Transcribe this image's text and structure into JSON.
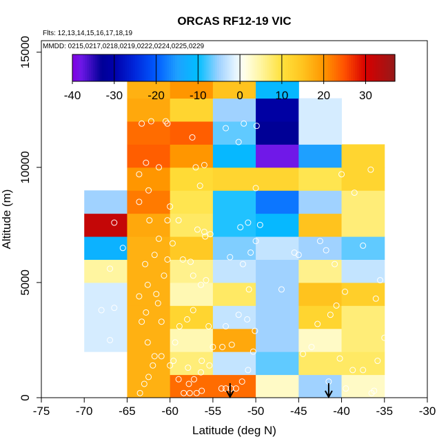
{
  "chart_data": {
    "type": "heatmap",
    "title": "ORCAS RF12-19 VIC",
    "flights_note": "Flts: 12,13,14,15,16,17,18,19",
    "dates_note": "MMDD: 0215,0217,0218,0219,0222,0224,0225,0229",
    "xlabel": "Latitude (deg N)",
    "ylabel": "Altitude (m)",
    "xlim": [
      -75,
      -30
    ],
    "ylim": [
      0,
      15500
    ],
    "x_ticks": [
      -75,
      -70,
      -65,
      -60,
      -55,
      -50,
      -45,
      -40,
      -35,
      -30
    ],
    "y_ticks": [
      0,
      5000,
      10000,
      15000
    ],
    "colorbar": {
      "range": [
        -40,
        37
      ],
      "ticks": [
        -40,
        -30,
        -20,
        -10,
        0,
        10,
        20,
        30
      ]
    },
    "cell_lat_edges": [
      -70,
      -65,
      -60,
      -55,
      -50,
      -45,
      -40,
      -35
    ],
    "cell_alt_step": 1000,
    "grid": [
      [
        null,
        17,
        23,
        23,
        3,
        -5,
        3
      ],
      [
        null,
        17,
        7,
        -3,
        -7,
        8,
        8
      ],
      [
        -2,
        17,
        4,
        18,
        -5,
        3,
        7
      ],
      [
        -2,
        17,
        12,
        -3,
        -5,
        12,
        7
      ],
      [
        -2,
        17,
        4,
        8,
        -5,
        15,
        13
      ],
      [
        5,
        17,
        6,
        -3,
        -5,
        6,
        -3
      ],
      [
        -12,
        17,
        14,
        -6,
        -3,
        -5,
        -7
      ],
      [
        32,
        18,
        8,
        -9,
        -11,
        15,
        7
      ],
      [
        -5,
        22,
        9,
        -9,
        -18,
        -5,
        7
      ],
      [
        null,
        20,
        11,
        12,
        12,
        9,
        12
      ],
      [
        null,
        24,
        20,
        -11,
        -38,
        -15,
        12
      ],
      [
        null,
        23,
        24,
        -7,
        -33,
        -2,
        null
      ],
      [
        null,
        18,
        12,
        -5,
        -31,
        -2,
        null
      ],
      [
        null,
        17,
        20,
        15,
        -11,
        null,
        null
      ]
    ],
    "points": [
      [
        -69,
        250
      ],
      [
        -68.5,
        900
      ],
      [
        -68,
        1300
      ],
      [
        -67.5,
        1500
      ],
      [
        -66.5,
        300
      ],
      [
        -66,
        1100
      ],
      [
        -67,
        2500
      ],
      [
        -68,
        3800
      ],
      [
        -66.5,
        3900
      ],
      [
        -67,
        5600
      ],
      [
        -65.5,
        6500
      ],
      [
        -66.5,
        7600
      ],
      [
        -63.5,
        200
      ],
      [
        -63,
        600
      ],
      [
        -62.5,
        900
      ],
      [
        -62,
        1400
      ],
      [
        -61.8,
        1800
      ],
      [
        -62.6,
        2400
      ],
      [
        -63.3,
        3300
      ],
      [
        -62.8,
        3700
      ],
      [
        -63.6,
        4400
      ],
      [
        -61.4,
        4100
      ],
      [
        -62.6,
        4900
      ],
      [
        -62.9,
        5800
      ],
      [
        -61.8,
        6200
      ],
      [
        -61.3,
        6900
      ],
      [
        -62.4,
        7700
      ],
      [
        -63.6,
        8500
      ],
      [
        -62.5,
        9000
      ],
      [
        -63.6,
        9700
      ],
      [
        -62.8,
        10200
      ],
      [
        -63.3,
        11900
      ],
      [
        -62.2,
        12000
      ],
      [
        -61.3,
        10000
      ],
      [
        -60.5,
        12000
      ],
      [
        -60.3,
        11900
      ],
      [
        -61.0,
        1800
      ],
      [
        -61.0,
        3300
      ],
      [
        -61.6,
        4500
      ],
      [
        -60.7,
        5300
      ],
      [
        -60.3,
        6000
      ],
      [
        -59.7,
        6700
      ],
      [
        -60.3,
        7700
      ],
      [
        -60.0,
        8300
      ],
      [
        -59.0,
        7700
      ],
      [
        -58.5,
        6000
      ],
      [
        -57.6,
        5900
      ],
      [
        -57.3,
        5300
      ],
      [
        -56.4,
        4900
      ],
      [
        -55.8,
        5100
      ],
      [
        -57.8,
        600
      ],
      [
        -57.2,
        800
      ],
      [
        -56.4,
        1100
      ],
      [
        -56.3,
        1600
      ],
      [
        -57.9,
        1300
      ],
      [
        -55.4,
        1400
      ],
      [
        -55.0,
        2200
      ],
      [
        -55.5,
        3100
      ],
      [
        -57.3,
        3800
      ],
      [
        -58.0,
        3400
      ],
      [
        -58.9,
        3100
      ],
      [
        -59.4,
        2400
      ],
      [
        -59.6,
        1600
      ],
      [
        -60.0,
        1400
      ],
      [
        -59.0,
        800
      ],
      [
        -58.4,
        200
      ],
      [
        -57.7,
        200
      ],
      [
        -56.9,
        200
      ],
      [
        -56.3,
        300
      ],
      [
        -55.9,
        7000
      ],
      [
        -55.3,
        7100
      ],
      [
        -56.0,
        7200
      ],
      [
        -56.8,
        7300
      ],
      [
        -57.0,
        10000
      ],
      [
        -56.0,
        10100
      ],
      [
        -56.5,
        9200
      ],
      [
        -57.4,
        11300
      ],
      [
        -54.0,
        400
      ],
      [
        -53.5,
        400
      ],
      [
        -52.9,
        400
      ],
      [
        -52.3,
        400
      ],
      [
        -51.6,
        700
      ],
      [
        -50.9,
        1200
      ],
      [
        -50.3,
        2000
      ],
      [
        -53.9,
        2200
      ],
      [
        -52.8,
        2300
      ],
      [
        -53.5,
        3100
      ],
      [
        -52.0,
        3600
      ],
      [
        -51.0,
        3400
      ],
      [
        -50.1,
        2900
      ],
      [
        -50.8,
        4700
      ],
      [
        -51.5,
        5800
      ],
      [
        -50.6,
        6300
      ],
      [
        -50.0,
        6800
      ],
      [
        -49.5,
        7500
      ],
      [
        -50.9,
        7600
      ],
      [
        -51.8,
        7400
      ],
      [
        -53.0,
        6100
      ],
      [
        -50.0,
        9100
      ],
      [
        -49.9,
        11800
      ],
      [
        -51.4,
        11900
      ],
      [
        -53.5,
        11700
      ],
      [
        -52.0,
        11100
      ],
      [
        -47.0,
        4700
      ],
      [
        -45.5,
        6300
      ],
      [
        -45.0,
        6200
      ],
      [
        -44.5,
        1900
      ],
      [
        -43.5,
        2200
      ],
      [
        -42.8,
        3200
      ],
      [
        -41.3,
        3600
      ],
      [
        -40.6,
        4000
      ],
      [
        -39.6,
        4600
      ],
      [
        -40.8,
        5800
      ],
      [
        -41.8,
        6400
      ],
      [
        -42.5,
        6800
      ],
      [
        -41.5,
        700
      ],
      [
        -40.2,
        1700
      ],
      [
        -38.7,
        1200
      ],
      [
        -39.5,
        400
      ],
      [
        -38.5,
        8900
      ],
      [
        -37.5,
        6600
      ],
      [
        -36.0,
        4300
      ],
      [
        -35.5,
        5100
      ],
      [
        -35.0,
        2600
      ],
      [
        -35.8,
        1600
      ],
      [
        -36.5,
        200
      ],
      [
        -36.2,
        300
      ],
      [
        -37.5,
        1200
      ],
      [
        -40.0,
        9700
      ],
      [
        -36.6,
        9900
      ]
    ],
    "arrows_lat": [
      -53,
      -41.5
    ]
  }
}
